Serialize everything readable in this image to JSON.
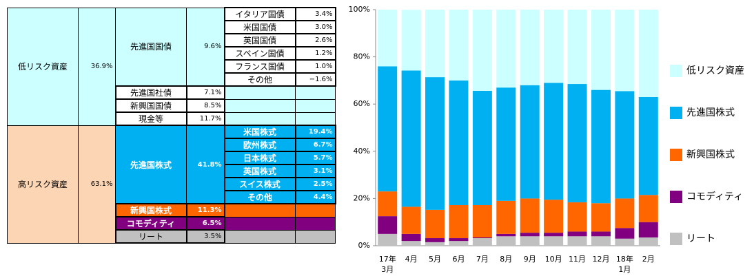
{
  "table": {
    "groups": [
      {
        "name": "低リスク資産",
        "value": "36.9%",
        "color": "#ccffff",
        "items": [
          {
            "name": "先進国国債",
            "value": "9.6%",
            "color": "#ccffff",
            "details": [
              {
                "name": "イタリア国債",
                "value": "3.4%"
              },
              {
                "name": "米国国債",
                "value": "3.0%"
              },
              {
                "name": "英国国債",
                "value": "2.6%"
              },
              {
                "name": "スペイン国債",
                "value": "1.2%"
              },
              {
                "name": "フランス国債",
                "value": "1.0%"
              },
              {
                "name": "その他",
                "value": "−1.6%"
              }
            ]
          },
          {
            "name": "先進国社債",
            "value": "7.1%",
            "color": "#ffffff",
            "details": []
          },
          {
            "name": "新興国国債",
            "value": "8.5%",
            "color": "#ffffff",
            "details": []
          },
          {
            "name": "現金等",
            "value": "11.7%",
            "color": "#ffffff",
            "details": []
          }
        ]
      },
      {
        "name": "高リスク資産",
        "value": "63.1%",
        "color": "#fcd5b4",
        "items": [
          {
            "name": "先進国株式",
            "value": "41.8%",
            "color": "#00b0f0",
            "details": [
              {
                "name": "米国株式",
                "value": "19.4%"
              },
              {
                "name": "欧州株式",
                "value": "6.7%"
              },
              {
                "name": "日本株式",
                "value": "5.7%"
              },
              {
                "name": "英国株式",
                "value": "3.1%"
              },
              {
                "name": "スイス株式",
                "value": "2.5%"
              },
              {
                "name": "その他",
                "value": "4.4%"
              }
            ]
          },
          {
            "name": "新興国株式",
            "value": "11.3%",
            "color": "#ff6600",
            "details": []
          },
          {
            "name": "コモディティ",
            "value": "6.5%",
            "color": "#800080",
            "details": []
          },
          {
            "name": "リート",
            "value": "3.5%",
            "color": "#c0c0c0",
            "details": []
          }
        ]
      }
    ]
  },
  "chart_data": {
    "type": "stacked_bar",
    "categories": [
      "17年\n3月",
      "4月",
      "5月",
      "6月",
      "7月",
      "8月",
      "9月",
      "10月",
      "11月",
      "12月",
      "18年\n1月",
      "2月"
    ],
    "series": [
      {
        "name": "低リスク資産",
        "color": "#ccffff",
        "values": [
          24,
          25.7,
          28.6,
          30,
          34.4,
          33,
          32,
          31,
          31.5,
          34,
          34.5,
          37
        ]
      },
      {
        "name": "先進国株式",
        "color": "#00b0f0",
        "values": [
          53,
          57.7,
          56.2,
          52.8,
          48.4,
          48,
          48,
          49.5,
          50.1,
          48,
          45.5,
          41.5
        ]
      },
      {
        "name": "新興国株式",
        "color": "#ff6600",
        "values": [
          10.5,
          11.5,
          12,
          14,
          13.7,
          14,
          14.5,
          14,
          12.4,
          12,
          12.5,
          11.5
        ]
      },
      {
        "name": "コモディティ",
        "color": "#800080",
        "values": [
          7.5,
          3,
          1.7,
          1.2,
          0.3,
          1,
          1.5,
          1.5,
          2,
          2,
          4.5,
          6.5
        ]
      },
      {
        "name": "リート",
        "color": "#c0c0c0",
        "values": [
          5,
          2,
          1.5,
          2,
          3.2,
          4,
          4,
          4,
          4,
          4,
          3,
          3.5
        ]
      }
    ],
    "ylim": [
      0,
      100
    ],
    "yticks": [
      {
        "value": 0,
        "label": "0%"
      },
      {
        "value": 20,
        "label": "20%"
      },
      {
        "value": 40,
        "label": "40%"
      },
      {
        "value": 60,
        "label": "60%"
      },
      {
        "value": 80,
        "label": "80%"
      },
      {
        "value": 100,
        "label": "100%"
      }
    ],
    "legend": "right"
  }
}
